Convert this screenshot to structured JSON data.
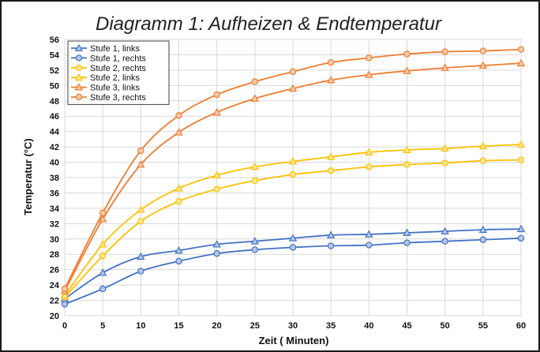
{
  "chart_data": {
    "type": "line",
    "title": "Diagramm 1: Aufheizen & Endtemperatur",
    "xlabel": "Zeit ( Minuten)",
    "ylabel": "Temperatur (°C)",
    "xlim": [
      0,
      60
    ],
    "ylim": [
      20,
      56
    ],
    "xticks": [
      0,
      5,
      10,
      15,
      20,
      25,
      30,
      35,
      40,
      45,
      50,
      55,
      60
    ],
    "yticks": [
      20,
      22,
      24,
      26,
      28,
      30,
      32,
      34,
      36,
      38,
      40,
      42,
      44,
      46,
      48,
      50,
      52,
      54,
      56
    ],
    "grid": true,
    "legend_position": "top-left",
    "x": [
      0,
      5,
      10,
      15,
      20,
      25,
      30,
      35,
      40,
      45,
      50,
      55,
      60
    ],
    "series": [
      {
        "name": "Stufe 1, links",
        "color": "#4472c4",
        "marker": "triangle",
        "values": [
          22.2,
          25.6,
          27.7,
          28.5,
          29.3,
          29.7,
          30.1,
          30.5,
          30.6,
          30.8,
          31.0,
          31.2,
          31.3
        ]
      },
      {
        "name": "Stufe 1, rechts",
        "color": "#4472c4",
        "marker": "circle",
        "values": [
          21.5,
          23.5,
          25.8,
          27.1,
          28.1,
          28.6,
          28.9,
          29.1,
          29.2,
          29.5,
          29.7,
          29.9,
          30.1
        ]
      },
      {
        "name": "Stufe 2, rechts",
        "color": "#ffc000",
        "marker": "circle",
        "values": [
          22.4,
          27.8,
          32.3,
          34.9,
          36.5,
          37.6,
          38.4,
          38.9,
          39.4,
          39.7,
          39.9,
          40.2,
          40.3
        ]
      },
      {
        "name": "Stufe 2, links",
        "color": "#ffc000",
        "marker": "triangle",
        "values": [
          22.6,
          29.3,
          33.8,
          36.6,
          38.3,
          39.4,
          40.1,
          40.7,
          41.3,
          41.6,
          41.8,
          42.1,
          42.3
        ]
      },
      {
        "name": "Stufe 3, links",
        "color": "#ed7d31",
        "marker": "triangle",
        "values": [
          23.2,
          32.6,
          39.7,
          43.9,
          46.5,
          48.3,
          49.6,
          50.7,
          51.4,
          51.9,
          52.3,
          52.6,
          52.9
        ]
      },
      {
        "name": "Stufe 3, rechts",
        "color": "#ed7d31",
        "marker": "circle",
        "values": [
          23.5,
          33.4,
          41.5,
          46.1,
          48.8,
          50.5,
          51.8,
          53.0,
          53.6,
          54.1,
          54.4,
          54.5,
          54.7
        ]
      }
    ]
  }
}
